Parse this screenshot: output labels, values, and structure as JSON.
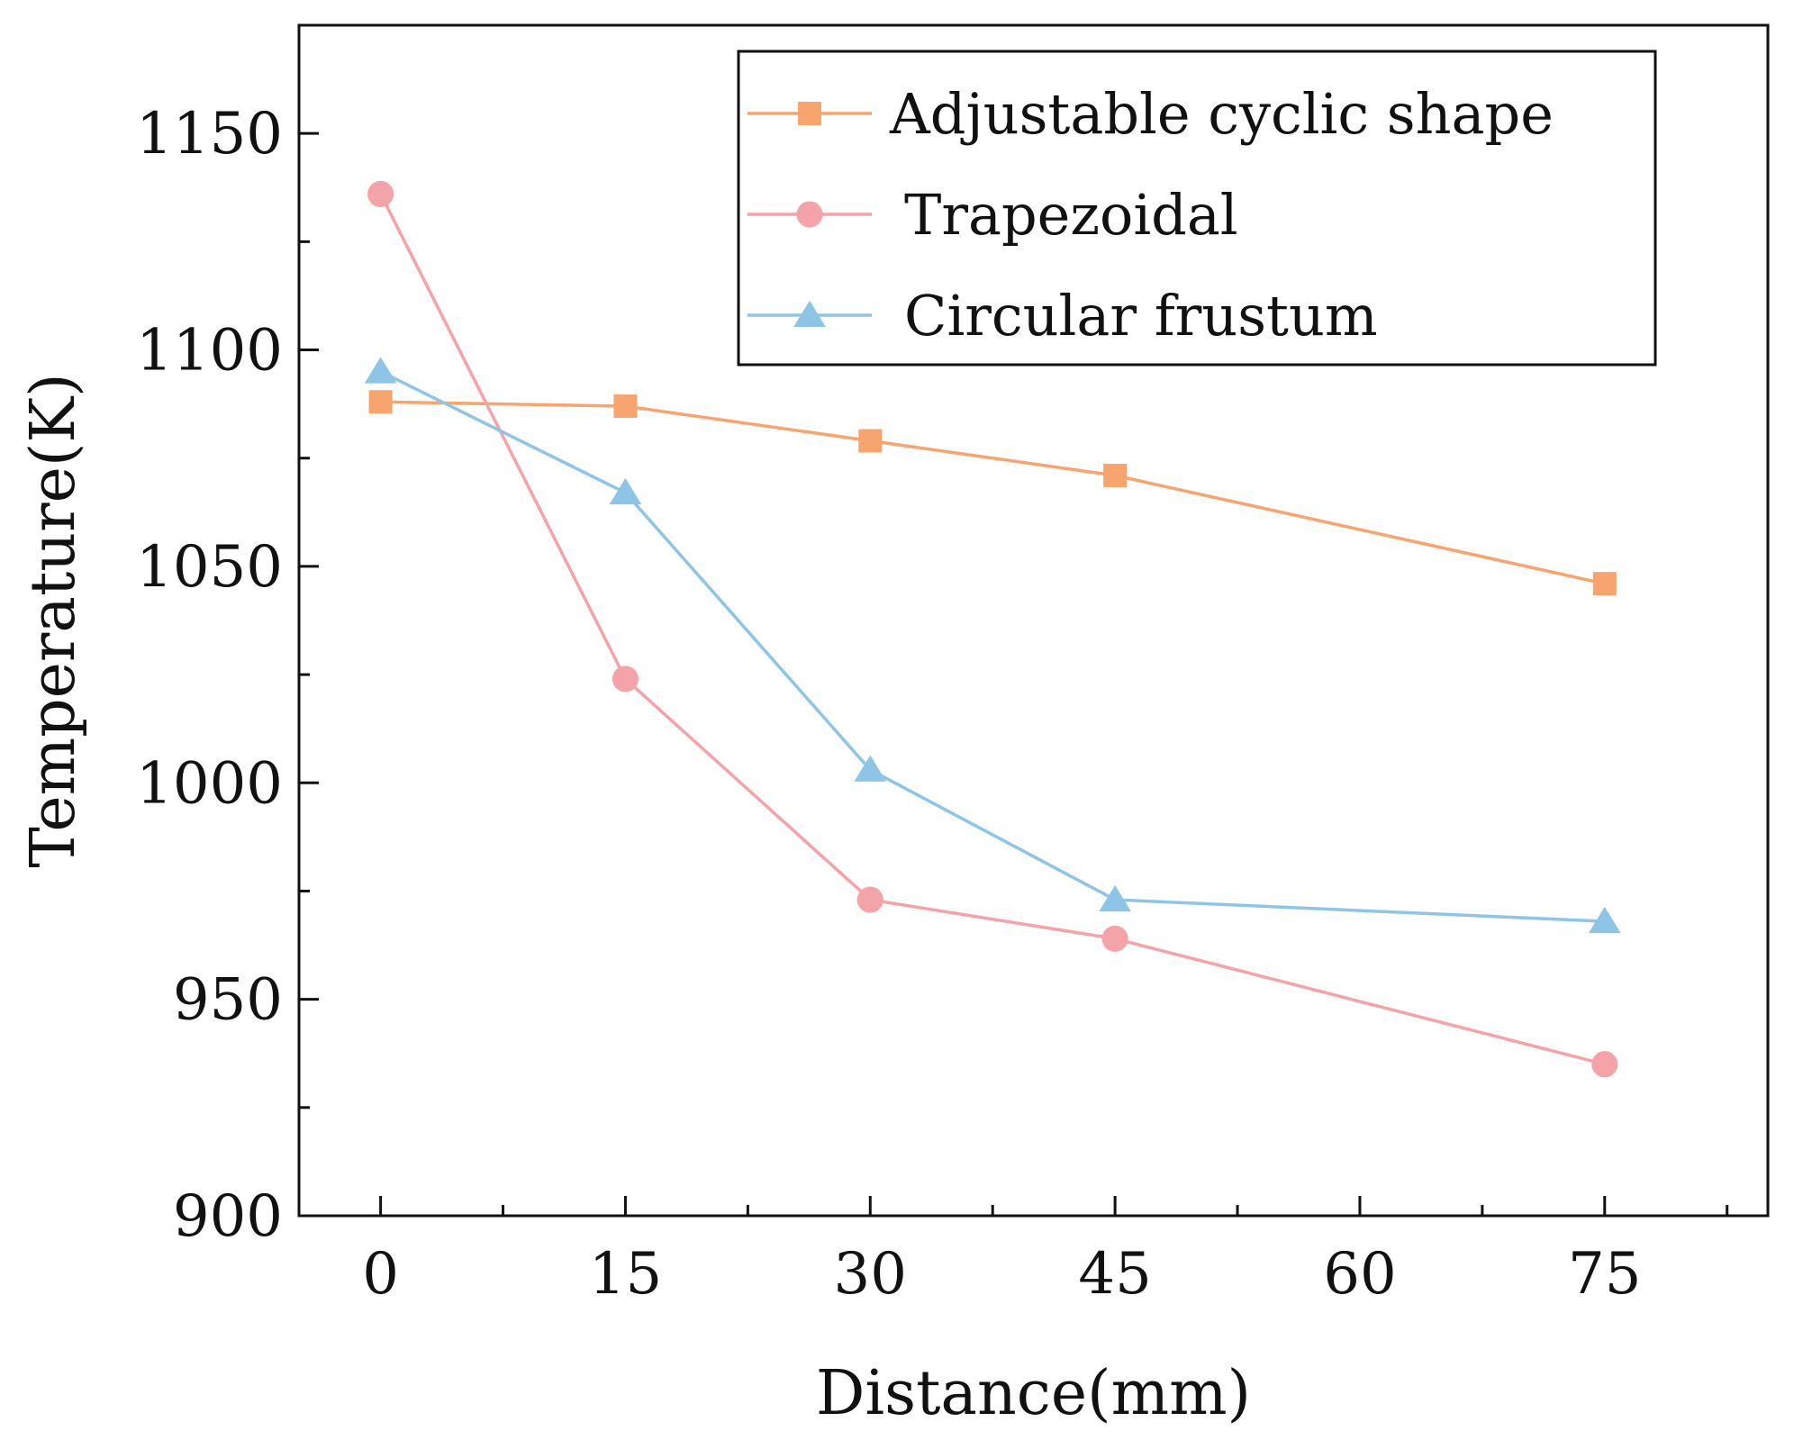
{
  "chart_data": {
    "type": "line",
    "title": "",
    "xlabel": "Distance(mm)",
    "ylabel": "Temperature(K)",
    "xlim": [
      -5,
      85
    ],
    "ylim": [
      900,
      1175
    ],
    "x_ticks": [
      0,
      15,
      30,
      45,
      60,
      75
    ],
    "x_tick_labels": [
      "0",
      "15",
      "30",
      "45",
      "60",
      "75"
    ],
    "x_minor_ticks": [
      7.5,
      22.5,
      37.5,
      52.5,
      67.5,
      82.5
    ],
    "y_ticks": [
      900,
      950,
      1000,
      1050,
      1100,
      1150
    ],
    "y_tick_labels": [
      "900",
      "950",
      "1000",
      "1050",
      "1100",
      "1150"
    ],
    "y_minor_ticks": [
      925,
      975,
      1025,
      1075,
      1125
    ],
    "legend_position": "top-right",
    "series": [
      {
        "name": "Adjustable cyclic shape",
        "color": "#F7A46E",
        "marker": "square",
        "x": [
          0,
          15,
          30,
          45,
          75
        ],
        "values": [
          1088,
          1087,
          1079,
          1071,
          1046
        ]
      },
      {
        "name": "Trapezoidal",
        "color": "#F4A3A8",
        "marker": "circle",
        "x": [
          0,
          15,
          30,
          45,
          75
        ],
        "values": [
          1136,
          1024,
          973,
          964,
          935
        ]
      },
      {
        "name": "Circular frustum",
        "color": "#8EC4E6",
        "marker": "triangle",
        "x": [
          0,
          15,
          30,
          45,
          75
        ],
        "values": [
          1095,
          1067,
          1003,
          973,
          968
        ]
      }
    ]
  }
}
